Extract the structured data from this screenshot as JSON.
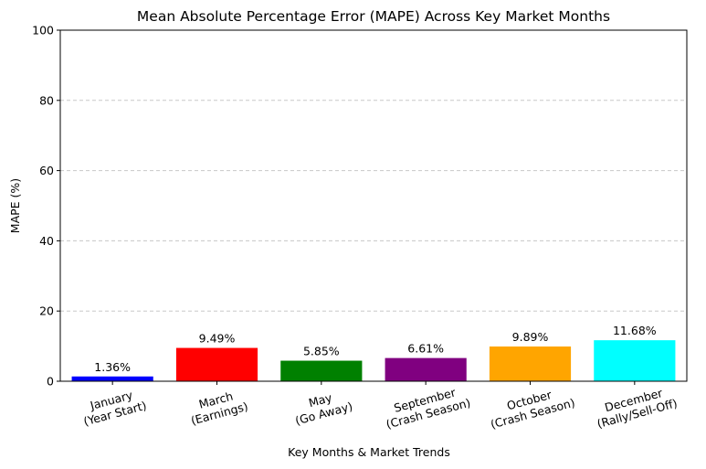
{
  "chart_data": {
    "type": "bar",
    "title": "Mean Absolute Percentage Error (MAPE) Across Key Market Months",
    "xlabel": "Key Months & Market Trends",
    "ylabel": "MAPE (%)",
    "ylim": [
      0,
      100
    ],
    "yticks": [
      0,
      20,
      40,
      60,
      80,
      100
    ],
    "grid": "y-dashed",
    "categories": [
      [
        "January",
        "(Year Start)"
      ],
      [
        "March",
        "(Earnings)"
      ],
      [
        "May",
        "(Go Away)"
      ],
      [
        "September",
        "(Crash Season)"
      ],
      [
        "October",
        "(Crash Season)"
      ],
      [
        "December",
        "(Rally/Sell-Off)"
      ]
    ],
    "values": [
      1.36,
      9.49,
      5.85,
      6.61,
      9.89,
      11.68
    ],
    "value_labels": [
      "1.36%",
      "9.49%",
      "5.85%",
      "6.61%",
      "9.89%",
      "11.68%"
    ],
    "colors": [
      "#0000ff",
      "#ff0000",
      "#008000",
      "#800080",
      "#ffa500",
      "#00ffff"
    ]
  }
}
